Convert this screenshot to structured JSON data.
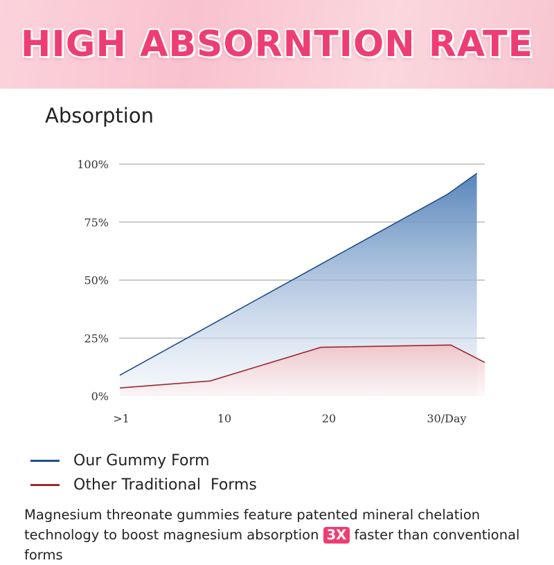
{
  "banner": {
    "title": "HIGH ABSORNTION RATE"
  },
  "chart_data": {
    "type": "area",
    "title": "Absorption",
    "y_ticks": [
      "0%",
      "25%",
      "50%",
      "75%",
      "100%"
    ],
    "x_ticks": [
      ">1",
      "10",
      "20",
      "30/Day"
    ],
    "ylim": [
      0,
      100
    ],
    "grid": true,
    "legend_placement": "bottom-left",
    "series": [
      {
        "name": "Our Gummy Form",
        "color": "#1f4b8f",
        "x": [
          0,
          29,
          31.6
        ],
        "values": [
          9,
          87,
          96
        ]
      },
      {
        "name": "Other Traditional  Forms",
        "color": "#9c2630",
        "x": [
          0,
          8,
          17.8,
          29.3,
          32.3
        ],
        "values": [
          3.5,
          6.5,
          21,
          22,
          14.5
        ]
      }
    ]
  },
  "caption": {
    "text_before": "Magnesium threonate gummies feature patented mineral chelation technology to boost magnesium absorption ",
    "highlight": "3X",
    "text_after": " faster than conventional forms"
  }
}
